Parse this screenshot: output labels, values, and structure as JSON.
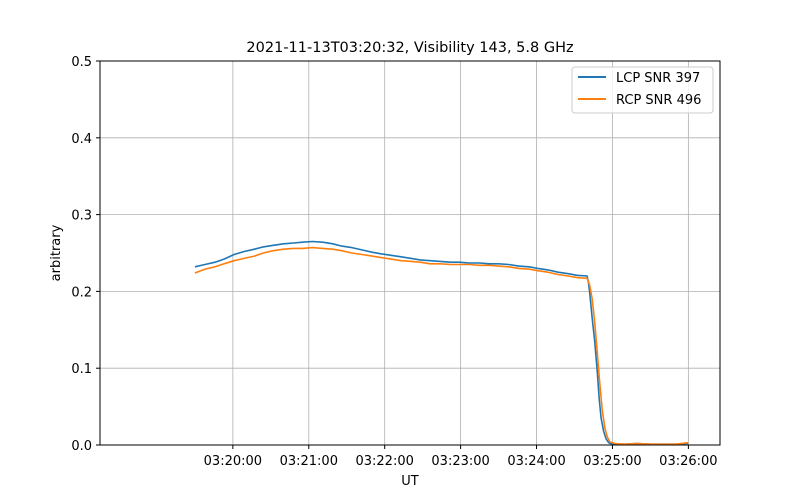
{
  "chart_data": {
    "type": "line",
    "title": "2021-11-13T03:20:32, Visibility 143, 5.8 GHz",
    "xlabel": "UT",
    "ylabel": "arbitrary",
    "x_units": "seconds after 03:19:00 UT",
    "xlim": [
      -45,
      445
    ],
    "ylim": [
      0,
      0.5
    ],
    "grid": true,
    "legend_position": "top-right",
    "x_ticks": [
      {
        "value": 60,
        "label": "03:20:00"
      },
      {
        "value": 120,
        "label": "03:21:00"
      },
      {
        "value": 180,
        "label": "03:22:00"
      },
      {
        "value": 240,
        "label": "03:23:00"
      },
      {
        "value": 300,
        "label": "03:24:00"
      },
      {
        "value": 360,
        "label": "03:25:00"
      },
      {
        "value": 420,
        "label": "03:26:00"
      }
    ],
    "y_ticks": [
      {
        "value": 0.0,
        "label": "0.0"
      },
      {
        "value": 0.1,
        "label": "0.1"
      },
      {
        "value": 0.2,
        "label": "0.2"
      },
      {
        "value": 0.3,
        "label": "0.3"
      },
      {
        "value": 0.4,
        "label": "0.4"
      },
      {
        "value": 0.5,
        "label": "0.5"
      }
    ],
    "series": [
      {
        "name": "LCP SNR 397",
        "color": "#1f77b4",
        "x": [
          30,
          38,
          46,
          53,
          61,
          69,
          77,
          84,
          92,
          100,
          108,
          115,
          123,
          131,
          139,
          146,
          154,
          162,
          170,
          177,
          185,
          193,
          201,
          208,
          216,
          224,
          232,
          239,
          247,
          255,
          263,
          270,
          278,
          286,
          294,
          301,
          309,
          317,
          325,
          332,
          340,
          341,
          342,
          344,
          346,
          348,
          349.5,
          351,
          353,
          355,
          357,
          360,
          370,
          380,
          390,
          400,
          410,
          420
        ],
        "y": [
          0.232,
          0.235,
          0.238,
          0.242,
          0.248,
          0.252,
          0.255,
          0.258,
          0.26,
          0.262,
          0.263,
          0.264,
          0.265,
          0.264,
          0.262,
          0.259,
          0.257,
          0.254,
          0.251,
          0.249,
          0.247,
          0.245,
          0.243,
          0.241,
          0.24,
          0.239,
          0.238,
          0.238,
          0.237,
          0.237,
          0.236,
          0.236,
          0.235,
          0.233,
          0.232,
          0.23,
          0.228,
          0.225,
          0.223,
          0.221,
          0.22,
          0.212,
          0.198,
          0.165,
          0.135,
          0.095,
          0.06,
          0.035,
          0.018,
          0.008,
          0.003,
          0.001,
          0.001,
          0.002,
          0.001,
          0.001,
          0.001,
          0.002
        ]
      },
      {
        "name": "RCP SNR 496",
        "color": "#ff7f0e",
        "x": [
          30,
          38,
          46,
          53,
          61,
          69,
          77,
          84,
          92,
          100,
          108,
          115,
          123,
          131,
          139,
          146,
          154,
          162,
          170,
          177,
          185,
          193,
          201,
          208,
          216,
          224,
          232,
          239,
          247,
          255,
          263,
          270,
          278,
          286,
          294,
          301,
          309,
          317,
          325,
          332,
          340,
          342,
          344,
          346,
          348,
          350,
          352,
          354,
          356,
          358,
          362,
          370,
          380,
          390,
          400,
          410,
          420
        ],
        "y": [
          0.224,
          0.229,
          0.232,
          0.236,
          0.24,
          0.243,
          0.246,
          0.25,
          0.253,
          0.255,
          0.256,
          0.256,
          0.257,
          0.256,
          0.255,
          0.253,
          0.25,
          0.248,
          0.246,
          0.244,
          0.242,
          0.24,
          0.239,
          0.238,
          0.236,
          0.236,
          0.235,
          0.235,
          0.235,
          0.234,
          0.234,
          0.233,
          0.232,
          0.23,
          0.229,
          0.227,
          0.225,
          0.222,
          0.22,
          0.218,
          0.217,
          0.208,
          0.19,
          0.16,
          0.12,
          0.08,
          0.045,
          0.022,
          0.01,
          0.004,
          0.002,
          0.001,
          0.002,
          0.001,
          0.001,
          0.001,
          0.003
        ]
      }
    ]
  }
}
